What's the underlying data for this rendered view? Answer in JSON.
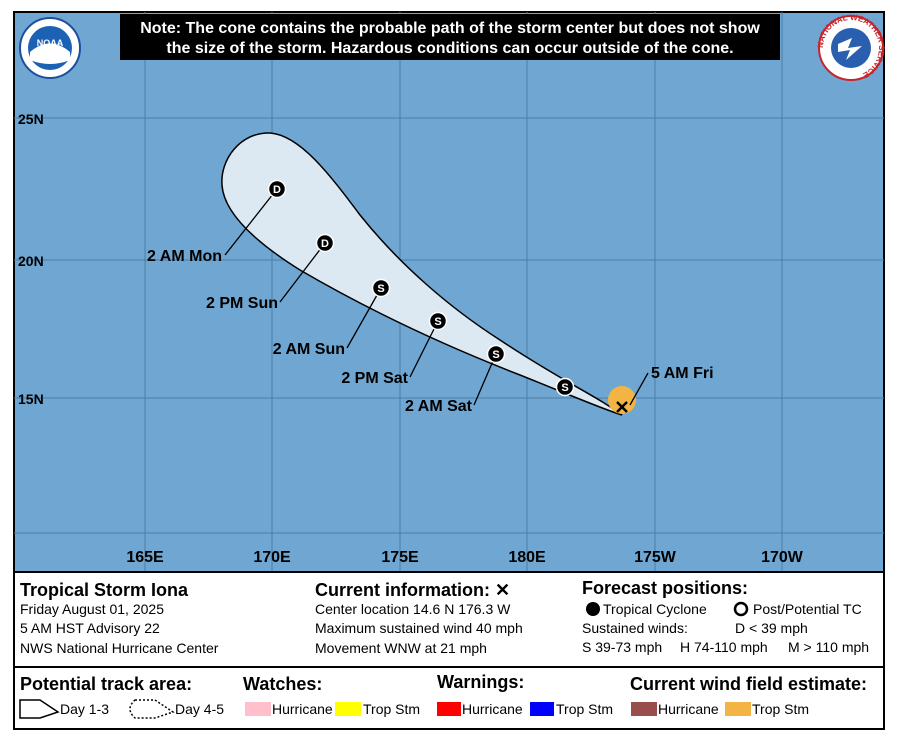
{
  "header": {
    "note": [
      "Note: The cone contains the probable path of the storm center but does not show",
      "the size of the storm. Hazardous conditions can occur outside of the cone."
    ],
    "noaa_logo": "NOAA",
    "nws_logo": "NATIONAL WEATHER SERVICE"
  },
  "map": {
    "lat_labels": [
      "25N",
      "20N",
      "15N"
    ],
    "lon_labels": [
      "165E",
      "170E",
      "175E",
      "180E",
      "175W",
      "170W"
    ],
    "forecast_points": [
      {
        "time": "2 AM Mon",
        "marker": "D"
      },
      {
        "time": "2 PM Sun",
        "marker": "D"
      },
      {
        "time": "2 AM Sun",
        "marker": "S"
      },
      {
        "time": "2 PM Sat",
        "marker": "S"
      },
      {
        "time": "2 AM Sat",
        "marker": "S"
      },
      {
        "time": null,
        "marker": "S"
      }
    ],
    "current_label": "5 AM Fri"
  },
  "info": {
    "storm_name": "Tropical Storm Iona",
    "date": "Friday August 01, 2025",
    "advisory": "5 AM HST Advisory 22",
    "center": "NWS National Hurricane Center",
    "current_title": "Current information: ✕",
    "current": [
      "Center location 14.6 N 176.3 W",
      "Maximum sustained wind 40 mph",
      "Movement WNW at 21 mph"
    ],
    "forecast_title": "Forecast positions:",
    "tropical_cyclone": "Tropical Cyclone",
    "post_potential": "Post/Potential TC",
    "sustained_winds": "Sustained winds:",
    "d_range": "D < 39 mph",
    "s_range": "S 39-73 mph",
    "h_range": "H 74-110 mph",
    "m_range": "M > 110 mph"
  },
  "legend": {
    "track_title": "Potential track area:",
    "day13": "Day 1-3",
    "day45": "Day 4-5",
    "watches_title": "Watches:",
    "watch_hurricane": "Hurricane",
    "watch_trop": "Trop Stm",
    "warnings_title": "Warnings:",
    "warn_hurricane": "Hurricane",
    "warn_trop": "Trop Stm",
    "wind_title": "Current wind field estimate:",
    "wind_hurricane": "Hurricane",
    "wind_trop": "Trop Stm"
  }
}
